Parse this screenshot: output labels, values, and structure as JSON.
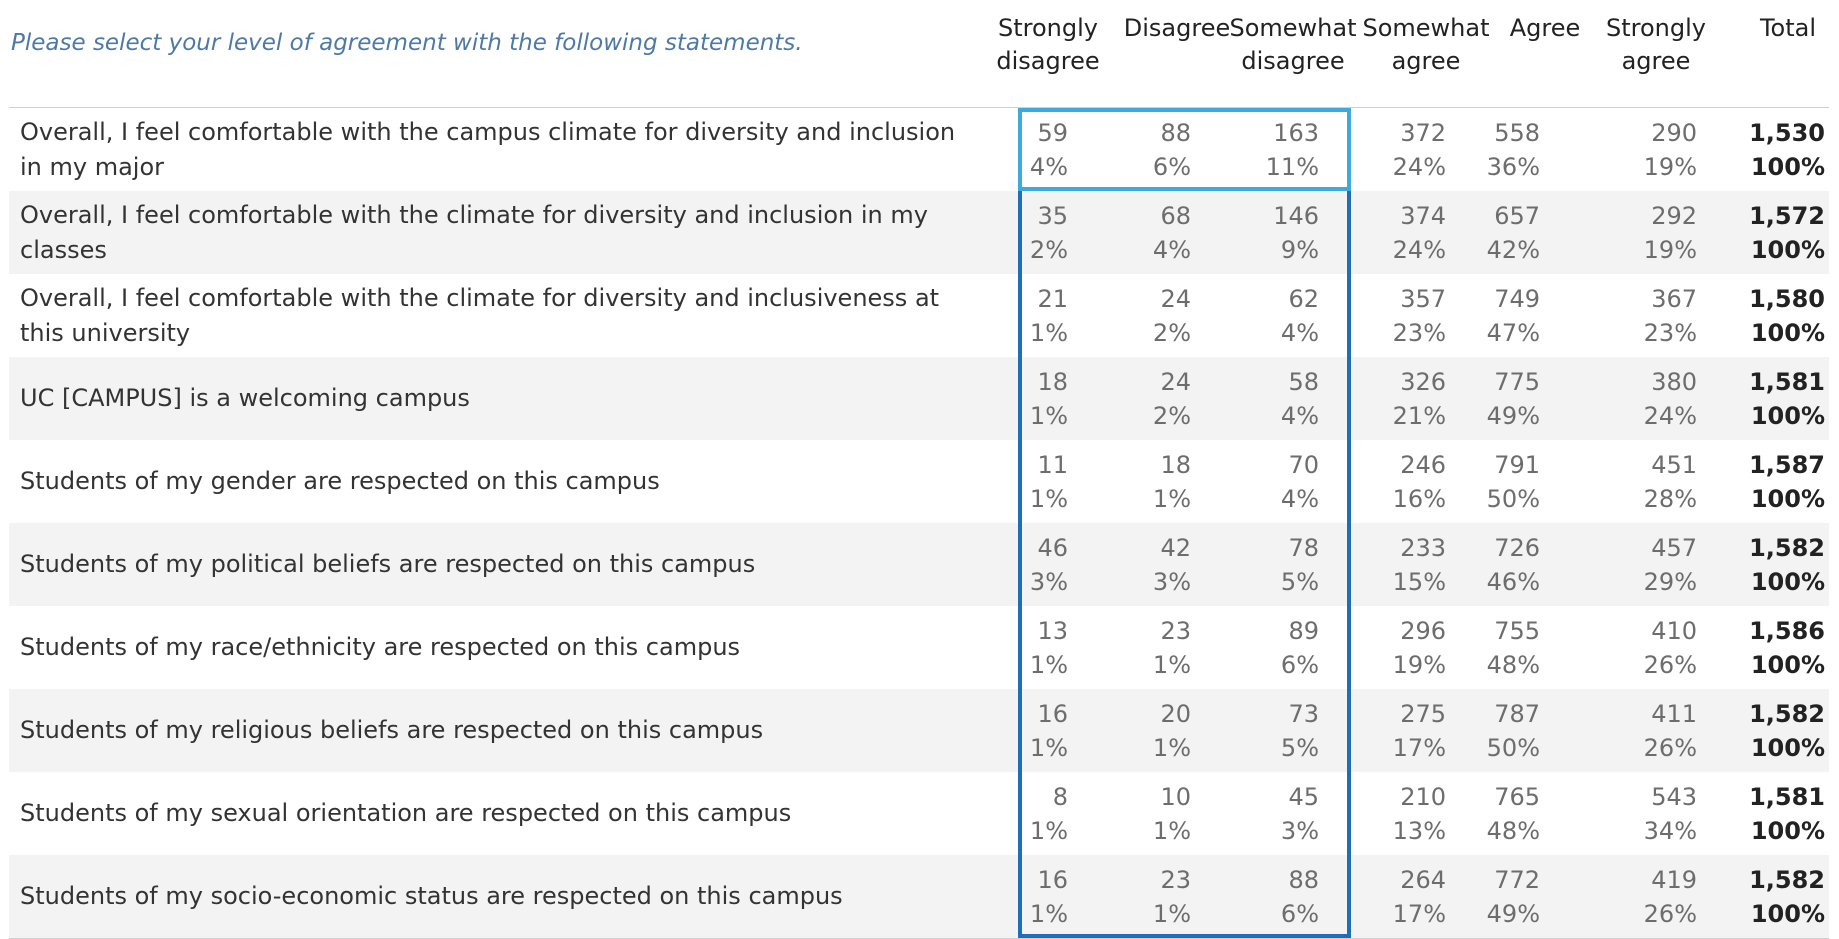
{
  "prompt": "Please select your level of agreement with the following statements.",
  "columns": [
    {
      "line1": "Strongly",
      "line2": "disagree"
    },
    {
      "line1": "Disagree",
      "line2": ""
    },
    {
      "line1": "Somewhat",
      "line2": "disagree"
    },
    {
      "line1": "Somewhat",
      "line2": "agree"
    },
    {
      "line1": "Agree",
      "line2": ""
    },
    {
      "line1": "Strongly",
      "line2": "agree"
    },
    {
      "line1": "Total",
      "line2": ""
    }
  ],
  "colors": {
    "highlight_first_row": "#3ea9dd",
    "highlight_rest": "#1f6fb8",
    "prompt": "#4e79a7"
  },
  "chart_data": {
    "type": "table",
    "title": "Please select your level of agreement with the following statements.",
    "columns": [
      "Strongly disagree",
      "Disagree",
      "Somewhat disagree",
      "Somewhat agree",
      "Agree",
      "Strongly agree",
      "Total"
    ],
    "rows": [
      {
        "label": "Overall, I feel comfortable with the campus climate for diversity and inclusion in my major",
        "counts": [
          "59",
          "88",
          "163",
          "372",
          "558",
          "290",
          "1,530"
        ],
        "pcts": [
          "4%",
          "6%",
          "11%",
          "24%",
          "36%",
          "19%",
          "100%"
        ]
      },
      {
        "label": "Overall, I feel comfortable with the climate for diversity and inclusion in my classes",
        "counts": [
          "35",
          "68",
          "146",
          "374",
          "657",
          "292",
          "1,572"
        ],
        "pcts": [
          "2%",
          "4%",
          "9%",
          "24%",
          "42%",
          "19%",
          "100%"
        ]
      },
      {
        "label": "Overall, I feel comfortable with the climate for diversity and inclusiveness at this university",
        "counts": [
          "21",
          "24",
          "62",
          "357",
          "749",
          "367",
          "1,580"
        ],
        "pcts": [
          "1%",
          "2%",
          "4%",
          "23%",
          "47%",
          "23%",
          "100%"
        ]
      },
      {
        "label": "UC [CAMPUS] is a welcoming campus",
        "counts": [
          "18",
          "24",
          "58",
          "326",
          "775",
          "380",
          "1,581"
        ],
        "pcts": [
          "1%",
          "2%",
          "4%",
          "21%",
          "49%",
          "24%",
          "100%"
        ]
      },
      {
        "label": "Students of my gender are respected on this campus",
        "counts": [
          "11",
          "18",
          "70",
          "246",
          "791",
          "451",
          "1,587"
        ],
        "pcts": [
          "1%",
          "1%",
          "4%",
          "16%",
          "50%",
          "28%",
          "100%"
        ]
      },
      {
        "label": "Students of my political beliefs are respected on this campus",
        "counts": [
          "46",
          "42",
          "78",
          "233",
          "726",
          "457",
          "1,582"
        ],
        "pcts": [
          "3%",
          "3%",
          "5%",
          "15%",
          "46%",
          "29%",
          "100%"
        ]
      },
      {
        "label": "Students of my race/ethnicity are respected on this campus",
        "counts": [
          "13",
          "23",
          "89",
          "296",
          "755",
          "410",
          "1,586"
        ],
        "pcts": [
          "1%",
          "1%",
          "6%",
          "19%",
          "48%",
          "26%",
          "100%"
        ]
      },
      {
        "label": "Students of my religious beliefs are respected on this campus",
        "counts": [
          "16",
          "20",
          "73",
          "275",
          "787",
          "411",
          "1,582"
        ],
        "pcts": [
          "1%",
          "1%",
          "5%",
          "17%",
          "50%",
          "26%",
          "100%"
        ]
      },
      {
        "label": "Students of my sexual orientation are respected on this campus",
        "counts": [
          "8",
          "10",
          "45",
          "210",
          "765",
          "543",
          "1,581"
        ],
        "pcts": [
          "1%",
          "1%",
          "3%",
          "13%",
          "48%",
          "34%",
          "100%"
        ]
      },
      {
        "label": "Students of my socio-economic status are respected on this campus",
        "counts": [
          "16",
          "23",
          "88",
          "264",
          "772",
          "419",
          "1,582"
        ],
        "pcts": [
          "1%",
          "1%",
          "6%",
          "17%",
          "49%",
          "26%",
          "100%"
        ]
      }
    ]
  }
}
